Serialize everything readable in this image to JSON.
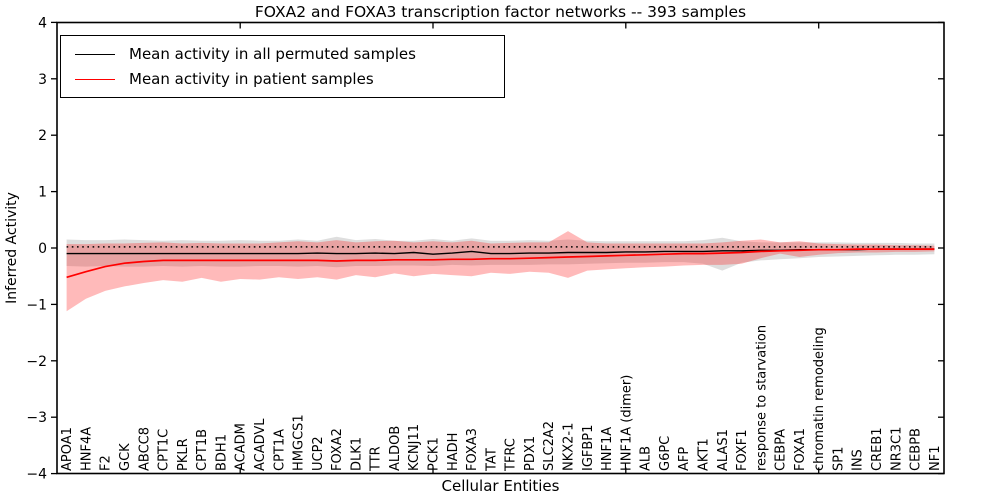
{
  "title": "FOXA2 and FOXA3 transcription factor networks -- 393 samples",
  "legend": {
    "entries": [
      {
        "label": "Mean activity in all permuted samples",
        "color": "#000000"
      },
      {
        "label": "Mean activity in patient samples",
        "color": "#ff0000"
      }
    ]
  },
  "chart_data": {
    "type": "line",
    "title": "FOXA2 and FOXA3 transcription factor networks -- 393 samples",
    "xlabel": "Cellular Entities",
    "ylabel": "Inferred Activity",
    "ylim": [
      -4,
      4
    ],
    "yticks": [
      4,
      3,
      2,
      1,
      0,
      -1,
      -2,
      -3,
      -4
    ],
    "ytick_labels": [
      "4",
      "3",
      "2",
      "1",
      "0",
      "−1",
      "−2",
      "−3",
      "−4"
    ],
    "x_major_tick_indices": [
      9,
      19,
      29,
      39
    ],
    "xticklabel_rotation": 90,
    "grid": false,
    "legend_position": "upper left",
    "categories": [
      "APOA1",
      "HNF4A",
      "F2",
      "GCK",
      "ABCC8",
      "CPT1C",
      "PKLR",
      "CPT1B",
      "BDH1",
      "ACADM",
      "ACADVL",
      "CPT1A",
      "HMGCS1",
      "UCP2",
      "FOXA2",
      "DLK1",
      "TTR",
      "ALDOB",
      "KCNJ11",
      "PCK1",
      "HADH",
      "FOXA3",
      "TAT",
      "TFRC",
      "PDX1",
      "SLC2A2",
      "NKX2-1",
      "IGFBP1",
      "HNF1A",
      "HNF1A (dimer)",
      "ALB",
      "G6PC",
      "AFP",
      "AKT1",
      "ALAS1",
      "FOXF1",
      "response to starvation",
      "CEBPA",
      "FOXA1",
      "chromatin remodeling",
      "SP1",
      "INS",
      "CREB1",
      "NR3C1",
      "CEBPB",
      "NF1"
    ],
    "reference_line": {
      "style": "dotted",
      "value": 0.02,
      "color": "#000000"
    },
    "series": [
      {
        "name": "Mean activity in all permuted samples",
        "color": "#000000",
        "band_color": "rgba(0,0,0,0.13)",
        "values": [
          -0.1,
          -0.1,
          -0.1,
          -0.1,
          -0.1,
          -0.1,
          -0.1,
          -0.1,
          -0.1,
          -0.1,
          -0.1,
          -0.1,
          -0.1,
          -0.09,
          -0.1,
          -0.1,
          -0.09,
          -0.1,
          -0.08,
          -0.11,
          -0.09,
          -0.06,
          -0.1,
          -0.1,
          -0.09,
          -0.09,
          -0.08,
          -0.08,
          -0.08,
          -0.07,
          -0.07,
          -0.06,
          -0.06,
          -0.06,
          -0.05,
          -0.05,
          -0.04,
          -0.04,
          -0.03,
          -0.03,
          -0.03,
          -0.03,
          -0.02,
          -0.02,
          -0.02,
          -0.02
        ],
        "band_upper": [
          0.15,
          0.14,
          0.14,
          0.15,
          0.14,
          0.13,
          0.14,
          0.13,
          0.13,
          0.14,
          0.13,
          0.13,
          0.15,
          0.13,
          0.2,
          0.14,
          0.16,
          0.13,
          0.13,
          0.16,
          0.13,
          0.17,
          0.13,
          0.13,
          0.14,
          0.13,
          0.15,
          0.13,
          0.12,
          0.12,
          0.12,
          0.12,
          0.12,
          0.14,
          0.18,
          0.12,
          0.1,
          0.1,
          0.1,
          0.1,
          0.1,
          0.09,
          0.09,
          0.09,
          0.08,
          0.08
        ],
        "band_lower": [
          -0.32,
          -0.33,
          -0.32,
          -0.33,
          -0.33,
          -0.32,
          -0.33,
          -0.32,
          -0.33,
          -0.33,
          -0.32,
          -0.32,
          -0.33,
          -0.32,
          -0.34,
          -0.32,
          -0.32,
          -0.31,
          -0.31,
          -0.32,
          -0.3,
          -0.31,
          -0.3,
          -0.3,
          -0.3,
          -0.29,
          -0.29,
          -0.28,
          -0.27,
          -0.26,
          -0.26,
          -0.25,
          -0.25,
          -0.28,
          -0.4,
          -0.26,
          -0.22,
          -0.2,
          -0.18,
          -0.16,
          -0.15,
          -0.14,
          -0.13,
          -0.12,
          -0.12,
          -0.11
        ]
      },
      {
        "name": "Mean activity in patient samples",
        "color": "#ff0000",
        "band_color": "rgba(255,0,0,0.27)",
        "values": [
          -0.52,
          -0.42,
          -0.33,
          -0.27,
          -0.24,
          -0.22,
          -0.22,
          -0.22,
          -0.22,
          -0.22,
          -0.22,
          -0.22,
          -0.22,
          -0.22,
          -0.23,
          -0.22,
          -0.22,
          -0.21,
          -0.21,
          -0.21,
          -0.2,
          -0.2,
          -0.19,
          -0.19,
          -0.18,
          -0.17,
          -0.16,
          -0.15,
          -0.14,
          -0.13,
          -0.12,
          -0.11,
          -0.1,
          -0.1,
          -0.09,
          -0.08,
          -0.06,
          -0.05,
          -0.04,
          -0.03,
          -0.03,
          -0.02,
          -0.02,
          -0.02,
          -0.02,
          -0.02
        ],
        "band_upper": [
          0.07,
          0.07,
          0.08,
          0.08,
          0.09,
          0.1,
          0.08,
          0.09,
          0.08,
          0.08,
          0.08,
          0.1,
          0.12,
          0.1,
          0.14,
          0.1,
          0.12,
          0.13,
          0.1,
          0.12,
          0.1,
          0.13,
          0.08,
          0.09,
          0.1,
          0.1,
          0.3,
          0.1,
          0.08,
          0.08,
          0.08,
          0.08,
          0.08,
          0.08,
          0.1,
          0.13,
          0.15,
          0.1,
          0.12,
          0.08,
          0.07,
          0.06,
          0.06,
          0.05,
          0.05,
          0.04
        ],
        "band_lower": [
          -1.12,
          -0.9,
          -0.76,
          -0.68,
          -0.62,
          -0.57,
          -0.6,
          -0.53,
          -0.6,
          -0.55,
          -0.56,
          -0.52,
          -0.55,
          -0.52,
          -0.56,
          -0.48,
          -0.52,
          -0.45,
          -0.5,
          -0.46,
          -0.48,
          -0.5,
          -0.44,
          -0.46,
          -0.42,
          -0.44,
          -0.53,
          -0.4,
          -0.38,
          -0.36,
          -0.34,
          -0.33,
          -0.31,
          -0.3,
          -0.3,
          -0.28,
          -0.18,
          -0.1,
          -0.16,
          -0.12,
          -0.09,
          -0.08,
          -0.08,
          -0.07,
          -0.07,
          -0.06
        ]
      }
    ]
  }
}
